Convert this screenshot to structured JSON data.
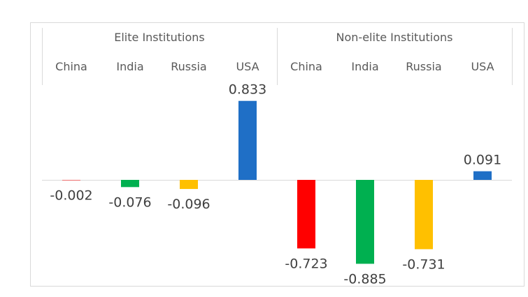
{
  "chart_data": {
    "type": "bar",
    "groups": [
      {
        "name": "Elite Institutions",
        "categories": [
          "China",
          "India",
          "Russia",
          "USA"
        ],
        "values": [
          -0.002,
          -0.076,
          -0.096,
          0.833
        ],
        "value_labels": [
          "-0.002",
          "-0.076",
          "-0.096",
          "0.833"
        ]
      },
      {
        "name": "Non-elite Institutions",
        "categories": [
          "China",
          "India",
          "Russia",
          "USA"
        ],
        "values": [
          -0.723,
          -0.885,
          -0.731,
          0.091
        ],
        "value_labels": [
          "-0.723",
          "-0.885",
          "-0.731",
          "0.091"
        ]
      }
    ],
    "category_colors": {
      "China": "#ff0000",
      "India": "#00b050",
      "Russia": "#ffc000",
      "USA": "#1f6fc6"
    },
    "ylim": [
      -0.885,
      0.833
    ],
    "grid": false,
    "legend": "none"
  }
}
